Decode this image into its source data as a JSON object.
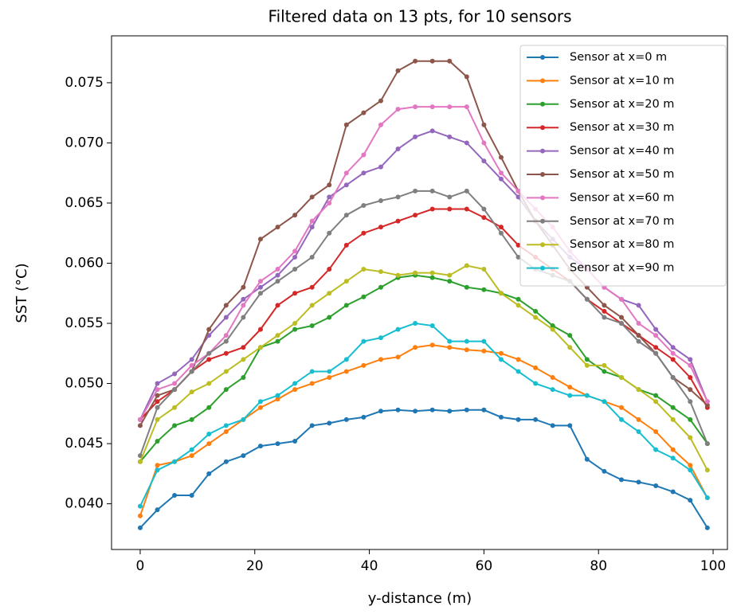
{
  "chart_data": {
    "type": "line",
    "title": "Filtered data on 13 pts, for 10 sensors",
    "xlabel": "y-distance (m)",
    "ylabel": "SST (°C)",
    "x": [
      0,
      3,
      6,
      9,
      12,
      15,
      18,
      21,
      24,
      27,
      30,
      33,
      36,
      39,
      42,
      45,
      48,
      51,
      54,
      57,
      60,
      63,
      66,
      69,
      72,
      75,
      78,
      81,
      84,
      87,
      90,
      93,
      96,
      99
    ],
    "series": [
      {
        "name": "Sensor at x=0 m",
        "color": "#1f77b4",
        "values": [
          0.038,
          0.0395,
          0.0407,
          0.0407,
          0.0425,
          0.0435,
          0.044,
          0.0448,
          0.045,
          0.0452,
          0.0465,
          0.0467,
          0.047,
          0.0472,
          0.0477,
          0.0478,
          0.0477,
          0.0478,
          0.0477,
          0.0478,
          0.0478,
          0.0472,
          0.047,
          0.047,
          0.0465,
          0.0465,
          0.0437,
          0.0427,
          0.042,
          0.0418,
          0.0415,
          0.041,
          0.0403,
          0.038
        ]
      },
      {
        "name": "Sensor at x=10 m",
        "color": "#ff7f0e",
        "values": [
          0.039,
          0.0432,
          0.0435,
          0.044,
          0.045,
          0.046,
          0.047,
          0.048,
          0.0487,
          0.0495,
          0.05,
          0.0505,
          0.051,
          0.0515,
          0.052,
          0.0522,
          0.053,
          0.0532,
          0.053,
          0.0528,
          0.0527,
          0.0525,
          0.052,
          0.0513,
          0.0505,
          0.0497,
          0.049,
          0.0485,
          0.048,
          0.047,
          0.046,
          0.0445,
          0.0432,
          0.0405
        ]
      },
      {
        "name": "Sensor at x=20 m",
        "color": "#2ca02c",
        "values": [
          0.0435,
          0.0452,
          0.0465,
          0.047,
          0.048,
          0.0495,
          0.0505,
          0.053,
          0.0535,
          0.0545,
          0.0548,
          0.0555,
          0.0565,
          0.0572,
          0.058,
          0.0588,
          0.059,
          0.0588,
          0.0585,
          0.058,
          0.0578,
          0.0575,
          0.057,
          0.056,
          0.0548,
          0.054,
          0.052,
          0.051,
          0.0505,
          0.0495,
          0.049,
          0.048,
          0.047,
          0.045
        ]
      },
      {
        "name": "Sensor at x=30 m",
        "color": "#d62728",
        "values": [
          0.047,
          0.0485,
          0.0495,
          0.051,
          0.052,
          0.0525,
          0.053,
          0.0545,
          0.0565,
          0.0575,
          0.058,
          0.0595,
          0.0615,
          0.0625,
          0.063,
          0.0635,
          0.064,
          0.0645,
          0.0645,
          0.0645,
          0.0638,
          0.063,
          0.0615,
          0.0605,
          0.0595,
          0.0585,
          0.057,
          0.056,
          0.055,
          0.054,
          0.053,
          0.052,
          0.0505,
          0.048
        ]
      },
      {
        "name": "Sensor at x=40 m",
        "color": "#9467bd",
        "values": [
          0.047,
          0.05,
          0.0508,
          0.052,
          0.054,
          0.0555,
          0.057,
          0.058,
          0.059,
          0.0605,
          0.063,
          0.0655,
          0.0665,
          0.0675,
          0.068,
          0.0695,
          0.0705,
          0.071,
          0.0705,
          0.07,
          0.0685,
          0.067,
          0.0655,
          0.0635,
          0.062,
          0.0605,
          0.0595,
          0.058,
          0.057,
          0.0565,
          0.0545,
          0.053,
          0.052,
          0.0485
        ]
      },
      {
        "name": "Sensor at x=50 m",
        "color": "#8c564b",
        "values": [
          0.0465,
          0.049,
          0.0495,
          0.051,
          0.0545,
          0.0565,
          0.058,
          0.062,
          0.063,
          0.064,
          0.0655,
          0.0665,
          0.0715,
          0.0725,
          0.0735,
          0.076,
          0.0768,
          0.0768,
          0.0768,
          0.0755,
          0.0715,
          0.0688,
          0.066,
          0.0635,
          0.0615,
          0.0595,
          0.058,
          0.0565,
          0.0555,
          0.054,
          0.0525,
          0.0505,
          0.0495,
          0.0482
        ]
      },
      {
        "name": "Sensor at x=60 m",
        "color": "#e377c2",
        "values": [
          0.047,
          0.0495,
          0.05,
          0.0515,
          0.0525,
          0.054,
          0.0565,
          0.0585,
          0.0595,
          0.061,
          0.0635,
          0.065,
          0.0675,
          0.069,
          0.0715,
          0.0728,
          0.073,
          0.073,
          0.073,
          0.073,
          0.07,
          0.0675,
          0.066,
          0.0645,
          0.063,
          0.061,
          0.0595,
          0.058,
          0.057,
          0.055,
          0.054,
          0.0525,
          0.0515,
          0.0485
        ]
      },
      {
        "name": "Sensor at x=70 m",
        "color": "#7f7f7f",
        "values": [
          0.044,
          0.048,
          0.0495,
          0.051,
          0.0525,
          0.0535,
          0.0555,
          0.0575,
          0.0585,
          0.0595,
          0.0605,
          0.0625,
          0.064,
          0.0648,
          0.0652,
          0.0655,
          0.066,
          0.066,
          0.0655,
          0.066,
          0.0645,
          0.0625,
          0.0605,
          0.0595,
          0.059,
          0.0585,
          0.057,
          0.0555,
          0.055,
          0.0535,
          0.0525,
          0.0505,
          0.0485,
          0.045
        ]
      },
      {
        "name": "Sensor at x=80 m",
        "color": "#bcbd22",
        "values": [
          0.0435,
          0.047,
          0.048,
          0.0493,
          0.05,
          0.051,
          0.052,
          0.053,
          0.054,
          0.055,
          0.0565,
          0.0575,
          0.0585,
          0.0595,
          0.0593,
          0.059,
          0.0592,
          0.0592,
          0.059,
          0.0598,
          0.0595,
          0.0575,
          0.0565,
          0.0555,
          0.0545,
          0.053,
          0.0515,
          0.0515,
          0.0505,
          0.0495,
          0.0485,
          0.047,
          0.0455,
          0.0428
        ]
      },
      {
        "name": "Sensor at x=90 m",
        "color": "#17becf",
        "values": [
          0.0398,
          0.0428,
          0.0435,
          0.0445,
          0.0458,
          0.0465,
          0.047,
          0.0485,
          0.049,
          0.05,
          0.051,
          0.051,
          0.052,
          0.0535,
          0.0538,
          0.0545,
          0.055,
          0.0548,
          0.0535,
          0.0535,
          0.0535,
          0.052,
          0.051,
          0.05,
          0.0495,
          0.049,
          0.049,
          0.0485,
          0.047,
          0.046,
          0.0445,
          0.0438,
          0.0428,
          0.0405
        ]
      }
    ],
    "xlim": [
      -5,
      102.5
    ],
    "ylim": [
      0.0362,
      0.0789
    ],
    "xticks": [
      0,
      20,
      40,
      60,
      80,
      100
    ],
    "yticks": [
      {
        "value": 0.04,
        "label": "0.040"
      },
      0.045,
      {
        "value": 0.05,
        "label": "0.050"
      },
      0.055,
      {
        "value": 0.06,
        "label": "0.060"
      },
      0.065,
      {
        "value": 0.07,
        "label": "0.070"
      },
      0.075
    ],
    "grid": false,
    "legend": "upper right"
  }
}
